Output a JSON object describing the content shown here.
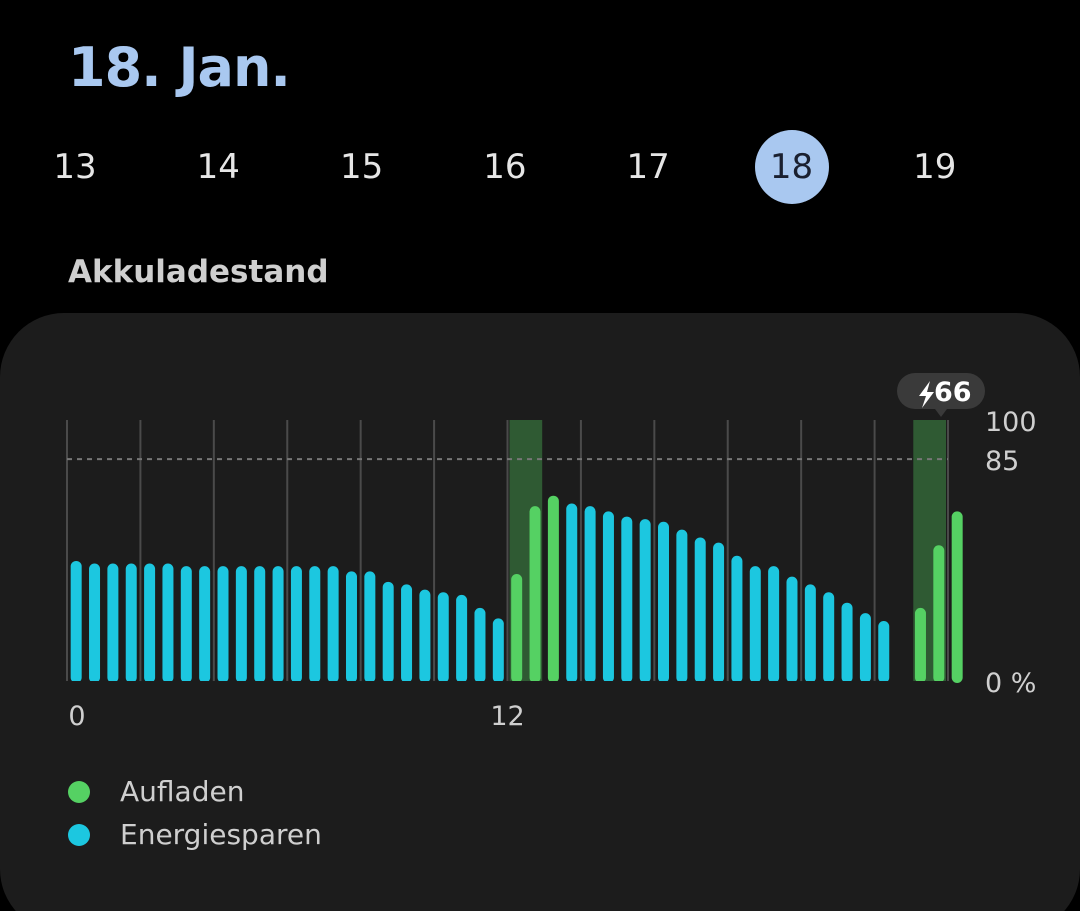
{
  "header": {
    "date_title": "18. Jan."
  },
  "days": [
    {
      "label": "13",
      "selected": false
    },
    {
      "label": "14",
      "selected": false
    },
    {
      "label": "15",
      "selected": false
    },
    {
      "label": "16",
      "selected": false
    },
    {
      "label": "17",
      "selected": false
    },
    {
      "label": "18",
      "selected": true
    },
    {
      "label": "19",
      "selected": false
    }
  ],
  "section": {
    "title": "Akkuladestand"
  },
  "colors": {
    "charging": "#55d163",
    "saving": "#1cc7e0",
    "charge_band": "#2f5a33",
    "accent": "#a9c8f0"
  },
  "chart_data": {
    "type": "bar",
    "title": "",
    "xlabel": "",
    "ylabel": "",
    "ylim": [
      0,
      100
    ],
    "y_ticks": [
      "100",
      "85",
      "0 %"
    ],
    "y_tick_values": [
      100,
      85,
      0
    ],
    "x_ticks": [
      "0",
      "12"
    ],
    "x_tick_values": [
      0,
      12
    ],
    "reference_line": 85,
    "interval_hours": 0.5,
    "charge_bands": [
      [
        12,
        13
      ],
      [
        23,
        24
      ]
    ],
    "badge": {
      "value": "66",
      "icon": "lightning-icon"
    },
    "legend": [
      {
        "name": "Aufladen",
        "color": "#55d163"
      },
      {
        "name": "Energiesparen",
        "color": "#1cc7e0"
      }
    ],
    "series": [
      {
        "name": "Aufladen",
        "start_index": 24,
        "values": [
          41,
          67,
          71
        ]
      },
      {
        "name": "Aufladen",
        "start_index": 46,
        "values": [
          28,
          52,
          65
        ]
      },
      {
        "name": "Energiesparen",
        "start_index": 0,
        "values": [
          46,
          45,
          45,
          45,
          45,
          45,
          44,
          44,
          44,
          44,
          44,
          44,
          44,
          44,
          44,
          42,
          42,
          38,
          37,
          35,
          34,
          33,
          28,
          24
        ]
      },
      {
        "name": "Energiesparen",
        "start_index": 27,
        "values": [
          68,
          67,
          65,
          63,
          62,
          61,
          58,
          55,
          53,
          48,
          44,
          44,
          40,
          37,
          34,
          30,
          26,
          23
        ]
      }
    ]
  }
}
